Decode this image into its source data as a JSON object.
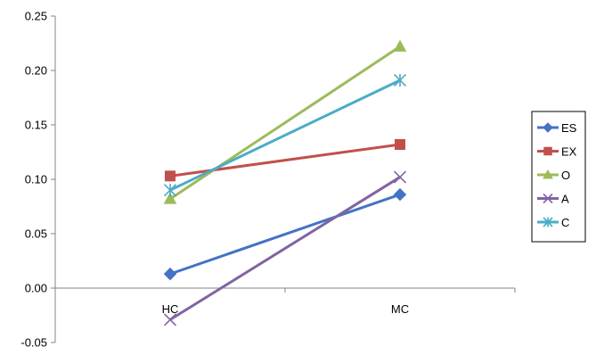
{
  "chart_data": {
    "type": "line",
    "categories": [
      "HC",
      "MC"
    ],
    "ylim": [
      -0.05,
      0.25
    ],
    "yticks": [
      "-0.05",
      "0.00",
      "0.05",
      "0.10",
      "0.15",
      "0.20",
      "0.25"
    ],
    "grid": false,
    "legend_position": "right",
    "series": [
      {
        "name": "ES",
        "values": [
          0.013,
          0.086
        ],
        "color": "#4472C4",
        "marker": "diamond"
      },
      {
        "name": "EX",
        "values": [
          0.103,
          0.132
        ],
        "color": "#C0504D",
        "marker": "square"
      },
      {
        "name": "O",
        "values": [
          0.082,
          0.222
        ],
        "color": "#9BBB59",
        "marker": "triangle"
      },
      {
        "name": "A",
        "values": [
          -0.029,
          0.102
        ],
        "color": "#8064A2",
        "marker": "x"
      },
      {
        "name": "C",
        "values": [
          0.09,
          0.191
        ],
        "color": "#4BACC6",
        "marker": "asterisk"
      }
    ]
  }
}
